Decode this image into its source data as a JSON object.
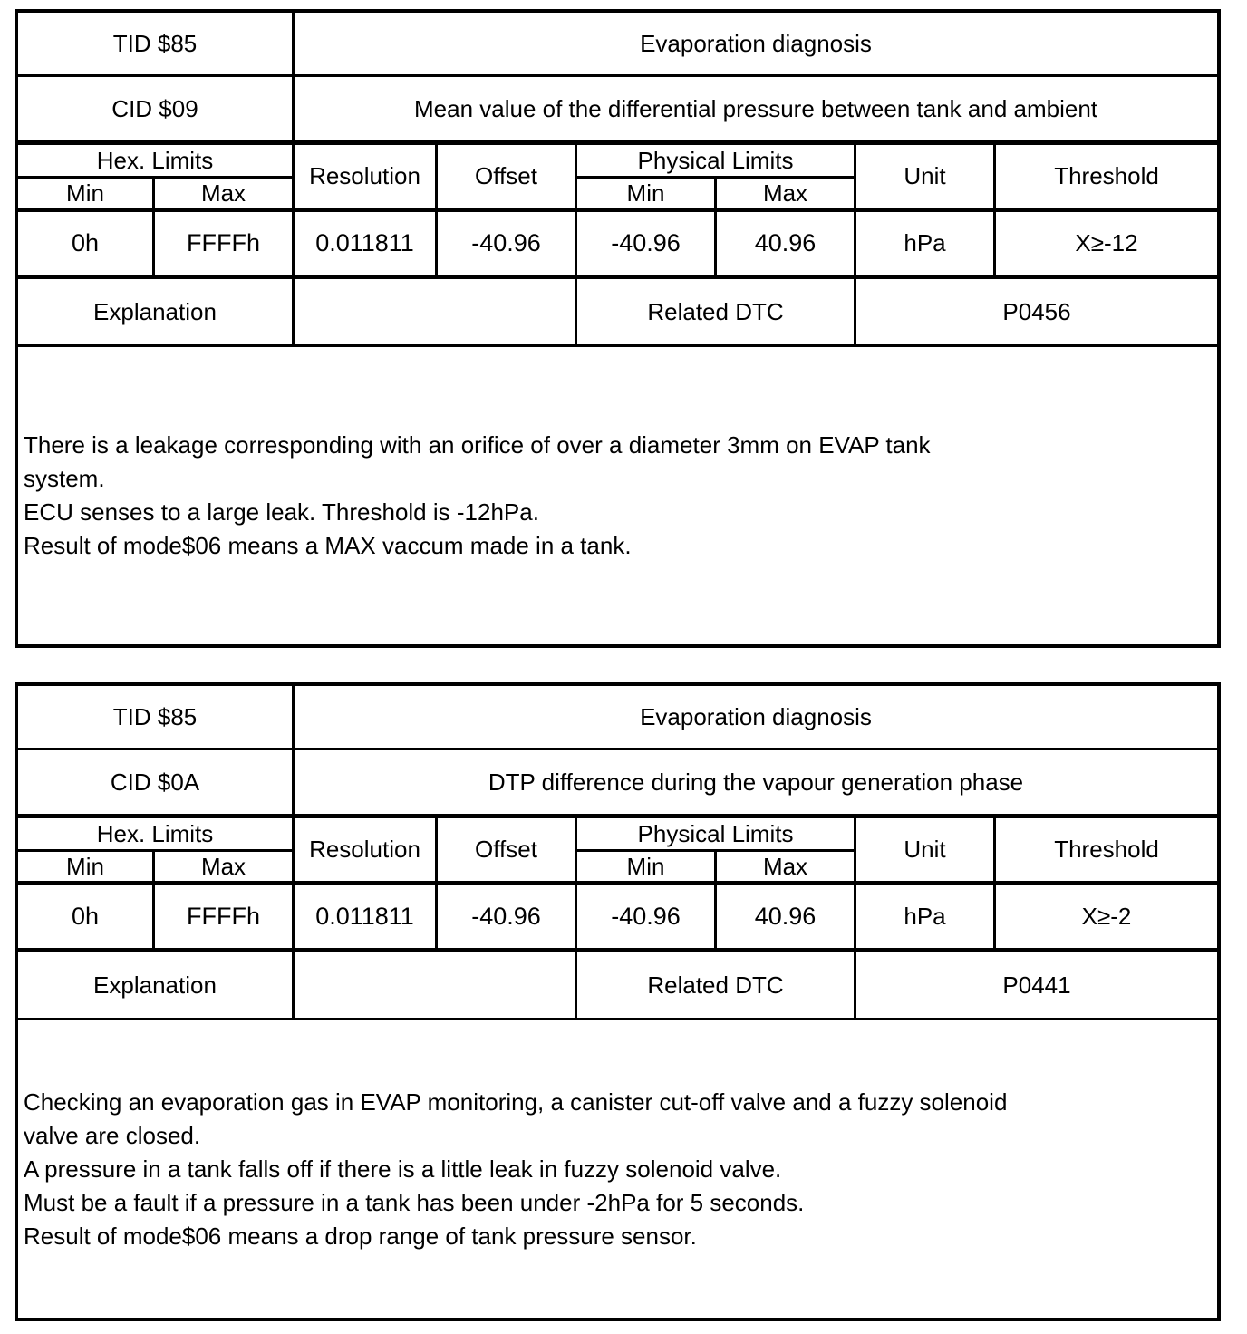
{
  "tables": [
    {
      "tid": "TID $85",
      "tid_desc": "Evaporation diagnosis",
      "cid": "CID $09",
      "cid_desc": "Mean value of the differential pressure between tank and ambient",
      "headers": {
        "hex_limits": "Hex. Limits",
        "min": "Min",
        "max": "Max",
        "resolution": "Resolution",
        "offset": "Offset",
        "physical_limits": "Physical Limits",
        "unit": "Unit",
        "threshold": "Threshold"
      },
      "values": {
        "hex_min": "0h",
        "hex_max": "FFFFh",
        "resolution": "0.011811",
        "offset": "-40.96",
        "phys_min": "-40.96",
        "phys_max": "40.96",
        "unit": "hPa",
        "threshold": "X≥-12"
      },
      "explanation_label": "Explanation",
      "explanation_value": "",
      "related_dtc_label": "Related DTC",
      "related_dtc": "P0456",
      "explanation_lines": [
        "There is a leakage corresponding with an orifice of over a diameter 3mm on EVAP tank",
        "system.",
        "ECU senses to a large leak. Threshold is -12hPa.",
        "Result of mode$06 means a MAX vaccum made in a tank."
      ]
    },
    {
      "tid": "TID $85",
      "tid_desc": "Evaporation diagnosis",
      "cid": "CID $0A",
      "cid_desc": "DTP difference during the vapour generation phase",
      "headers": {
        "hex_limits": "Hex. Limits",
        "min": "Min",
        "max": "Max",
        "resolution": "Resolution",
        "offset": "Offset",
        "physical_limits": "Physical Limits",
        "unit": "Unit",
        "threshold": "Threshold"
      },
      "values": {
        "hex_min": "0h",
        "hex_max": "FFFFh",
        "resolution": "0.011811",
        "offset": "-40.96",
        "phys_min": "-40.96",
        "phys_max": "40.96",
        "unit": "hPa",
        "threshold": "X≥-2"
      },
      "explanation_label": "Explanation",
      "explanation_value": "",
      "related_dtc_label": "Related DTC",
      "related_dtc": "P0441",
      "explanation_lines": [
        "Checking an evaporation gas in EVAP monitoring, a canister cut-off valve and a fuzzy solenoid",
        "valve are closed.",
        "A pressure in a tank falls off if there is a little leak in fuzzy solenoid valve.",
        "Must be a fault if a pressure in a tank has been under -2hPa for 5 seconds.",
        "Result of mode$06 means a drop range of tank pressure sensor."
      ]
    }
  ]
}
